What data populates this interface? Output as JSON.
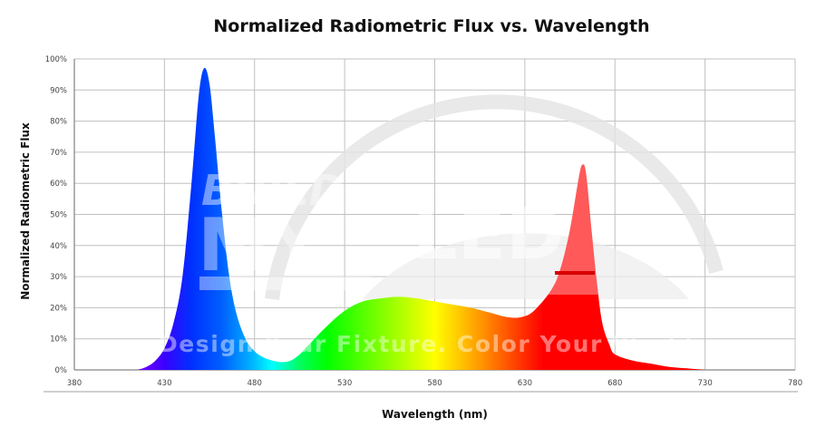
{
  "chart_data": {
    "type": "area",
    "title": "Normalized Radiometric Flux vs. Wavelength",
    "xlabel": "Wavelength (nm)",
    "ylabel": "Normalized Radiometric Flux",
    "xlim": [
      380,
      780
    ],
    "ylim": [
      0,
      100
    ],
    "x_ticks": [
      "380",
      "430",
      "480",
      "530",
      "580",
      "630",
      "680",
      "730",
      "780"
    ],
    "y_ticks": [
      "0%",
      "10%",
      "20%",
      "30%",
      "40%",
      "50%",
      "60%",
      "70%",
      "80%",
      "90%",
      "100%"
    ],
    "grid": true,
    "fill": "wavelength-colored spectrum gradient",
    "series": [
      {
        "x": [
          415,
          420,
          425,
          430,
          435,
          440,
          445,
          449,
          452,
          455,
          458,
          462,
          466,
          470,
          475,
          480,
          485,
          490,
          495,
          500,
          505,
          510,
          520,
          530,
          540,
          550,
          560,
          570,
          580,
          590,
          600,
          610,
          620,
          628,
          635,
          645,
          650,
          655,
          660,
          662,
          664,
          667,
          670,
          673,
          677,
          680,
          690,
          700,
          710,
          720,
          730
        ],
        "y": [
          0,
          1,
          3,
          7,
          15,
          30,
          60,
          88,
          97,
          92,
          75,
          50,
          30,
          18,
          10,
          6,
          4,
          3,
          2.5,
          3,
          5,
          8,
          14,
          19,
          22,
          23,
          23.5,
          23,
          22,
          21,
          20,
          18.5,
          17,
          17,
          19,
          26,
          33,
          45,
          62,
          66,
          63,
          45,
          28,
          15,
          8,
          5,
          3,
          2,
          1,
          0.5,
          0
        ]
      }
    ],
    "watermark": {
      "logo": "BUILD MY LED",
      "tagline": "Design Your Fixture. Color Your World."
    }
  },
  "colors": {
    "grid": "#c0c0c0",
    "axis": "#9a9a9a",
    "watermark": "#e3e3e3"
  }
}
